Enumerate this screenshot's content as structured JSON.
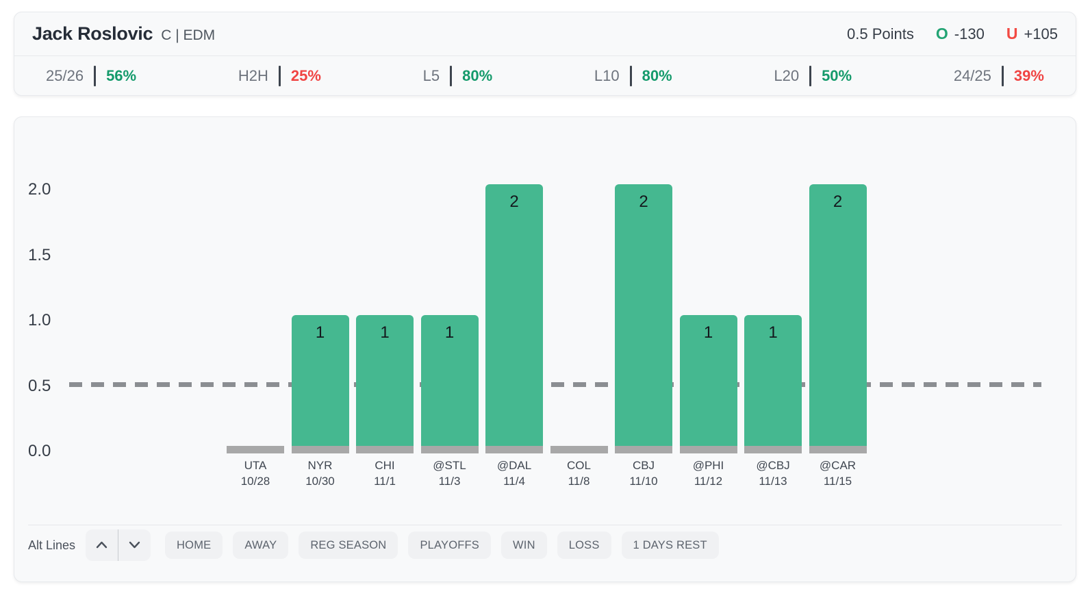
{
  "header": {
    "player_name": "Jack Roslovic",
    "position_team": "C | EDM",
    "line_label": "0.5 Points",
    "over": {
      "label": "O",
      "odds": "-130"
    },
    "under": {
      "label": "U",
      "odds": "+105"
    }
  },
  "stats": [
    {
      "label": "25/26",
      "value": "56%",
      "trend": "positive"
    },
    {
      "label": "H2H",
      "value": "25%",
      "trend": "negative"
    },
    {
      "label": "L5",
      "value": "80%",
      "trend": "positive"
    },
    {
      "label": "L10",
      "value": "80%",
      "trend": "positive"
    },
    {
      "label": "L20",
      "value": "50%",
      "trend": "positive"
    },
    {
      "label": "24/25",
      "value": "39%",
      "trend": "negative"
    }
  ],
  "chart_data": {
    "type": "bar",
    "title": "",
    "xlabel": "",
    "ylabel": "",
    "ylim": [
      0,
      2
    ],
    "yticks": [
      "2.0",
      "1.5",
      "1.0",
      "0.5",
      "0.0"
    ],
    "betting_line": 0.5,
    "line_style": "dashed",
    "grid": false,
    "legend": false,
    "categories": [
      "UTA 10/28",
      "NYR 10/30",
      "CHI 11/1",
      "@STL 11/3",
      "@DAL 11/4",
      "COL 11/8",
      "CBJ 11/10",
      "@PHI 11/12",
      "@CBJ 11/13",
      "@CAR 11/15"
    ],
    "values": [
      0,
      1,
      1,
      1,
      2,
      0,
      2,
      1,
      1,
      2
    ],
    "games": [
      {
        "opponent": "UTA",
        "date": "10/28",
        "value": 0
      },
      {
        "opponent": "NYR",
        "date": "10/30",
        "value": 1
      },
      {
        "opponent": "CHI",
        "date": "11/1",
        "value": 1
      },
      {
        "opponent": "@STL",
        "date": "11/3",
        "value": 1
      },
      {
        "opponent": "@DAL",
        "date": "11/4",
        "value": 2
      },
      {
        "opponent": "COL",
        "date": "11/8",
        "value": 0
      },
      {
        "opponent": "CBJ",
        "date": "11/10",
        "value": 2
      },
      {
        "opponent": "@PHI",
        "date": "11/12",
        "value": 1
      },
      {
        "opponent": "@CBJ",
        "date": "11/13",
        "value": 1
      },
      {
        "opponent": "@CAR",
        "date": "11/15",
        "value": 2
      }
    ],
    "colors": {
      "bar": "#45b890",
      "zero_base": "#a8a8a8",
      "line": "#8b8e92"
    }
  },
  "controls": {
    "alt_lines_label": "Alt Lines",
    "stepper": {
      "up_icon": "chevron-up",
      "down_icon": "chevron-down"
    },
    "filters": [
      "HOME",
      "AWAY",
      "REG SEASON",
      "PLAYOFFS",
      "WIN",
      "LOSS",
      "1 DAYS REST"
    ]
  },
  "colors": {
    "positive": "#149a6b",
    "negative": "#f04443",
    "over": "#23a474",
    "under": "#f24a43"
  }
}
